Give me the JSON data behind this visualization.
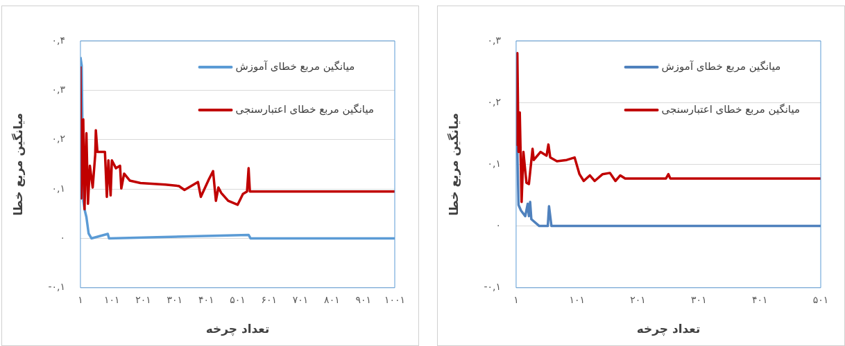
{
  "chart_data": [
    {
      "type": "line",
      "xlabel": "تعداد چرخه",
      "ylabel": "میانگین مربع خطا",
      "xlim": [
        1,
        1001
      ],
      "ylim": [
        -0.1,
        0.4
      ],
      "xticks": [
        {
          "value": 1,
          "label": "۱"
        },
        {
          "value": 101,
          "label": "۱۰۱"
        },
        {
          "value": 201,
          "label": "۲۰۱"
        },
        {
          "value": 301,
          "label": "۳۰۱"
        },
        {
          "value": 401,
          "label": "۴۰۱"
        },
        {
          "value": 501,
          "label": "۵۰۱"
        },
        {
          "value": 601,
          "label": "۶۰۱"
        },
        {
          "value": 701,
          "label": "۷۰۱"
        },
        {
          "value": 801,
          "label": "۸۰۱"
        },
        {
          "value": 901,
          "label": "۹۰۱"
        },
        {
          "value": 1001,
          "label": "۱۰۰۱"
        }
      ],
      "yticks": [
        {
          "value": -0.1,
          "label": "-۰,۱"
        },
        {
          "value": 0,
          "label": "۰"
        },
        {
          "value": 0.1,
          "label": "۰,۱"
        },
        {
          "value": 0.2,
          "label": "۰,۲"
        },
        {
          "value": 0.3,
          "label": "۰,۳"
        },
        {
          "value": 0.4,
          "label": "۰,۴"
        }
      ],
      "grid": "y",
      "legend": "top right",
      "marker": "none",
      "line_style": "solid",
      "series": [
        {
          "name": "میانگین مربع خطای آموزش",
          "color": "#5b9bd5",
          "x": [
            1,
            5,
            10,
            14,
            20,
            27,
            36,
            88,
            92,
            536,
            542,
            1001
          ],
          "values": [
            0.367,
            0.35,
            0.076,
            0.059,
            0.043,
            0.01,
            0,
            0.009,
            0,
            0.007,
            0,
            0
          ]
        },
        {
          "name": "میانگین مربع خطای اعتبارسنجی",
          "color": "#c00000",
          "x": [
            1,
            4,
            10,
            14,
            20,
            25,
            31,
            40,
            48,
            50,
            55,
            62,
            79,
            85,
            90,
            97,
            101,
            114,
            127,
            131,
            140,
            158,
            192,
            271,
            314,
            332,
            375,
            384,
            410,
            423,
            432,
            440,
            449,
            471,
            501,
            518,
            531,
            536,
            540,
            662,
            1001
          ],
          "values": [
            0.348,
            0.081,
            0.241,
            0.059,
            0.213,
            0.07,
            0.147,
            0.103,
            0.169,
            0.219,
            0.175,
            0.175,
            0.175,
            0.084,
            0.158,
            0.087,
            0.158,
            0.142,
            0.147,
            0.101,
            0.131,
            0.117,
            0.112,
            0.109,
            0.106,
            0.098,
            0.114,
            0.084,
            0.12,
            0.136,
            0.076,
            0.103,
            0.092,
            0.076,
            0.068,
            0.09,
            0.095,
            0.142,
            0.095,
            0.095,
            0.095
          ]
        }
      ]
    },
    {
      "type": "line",
      "xlabel": "تعداد چرخه",
      "ylabel": "میانگین مربع خطا",
      "xlim": [
        1,
        501
      ],
      "ylim": [
        -0.1,
        0.3
      ],
      "xticks": [
        {
          "value": 1,
          "label": "۱"
        },
        {
          "value": 101,
          "label": "۱۰۱"
        },
        {
          "value": 201,
          "label": "۲۰۱"
        },
        {
          "value": 301,
          "label": "۳۰۱"
        },
        {
          "value": 401,
          "label": "۴۰۱"
        },
        {
          "value": 501,
          "label": "۵۰۱"
        }
      ],
      "yticks": [
        {
          "value": -0.1,
          "label": "-۰,۱"
        },
        {
          "value": 0,
          "label": "۰"
        },
        {
          "value": 0.1,
          "label": "۰,۱"
        },
        {
          "value": 0.2,
          "label": "۰,۲"
        },
        {
          "value": 0.3,
          "label": "۰,۳"
        }
      ],
      "grid": "y",
      "legend": "top right",
      "marker": "none",
      "line_style": "solid",
      "series": [
        {
          "name": "میانگین مربع خطای آموزش",
          "color": "#4f81bd",
          "x": [
            1,
            2,
            3,
            5,
            9,
            16,
            20,
            22,
            24,
            26,
            39,
            53,
            55,
            59,
            501
          ],
          "values": [
            0.12,
            0.202,
            0.12,
            0.034,
            0.025,
            0.016,
            0.036,
            0.016,
            0.039,
            0.011,
            0,
            0,
            0.032,
            0,
            0
          ]
        },
        {
          "name": "میانگین مربع خطای اعتبارسنجی",
          "color": "#c00000",
          "x": [
            1,
            3,
            5,
            7,
            10,
            13,
            16,
            18,
            22,
            28,
            30,
            41,
            51,
            54,
            57,
            68,
            84,
            97,
            105,
            112,
            122,
            130,
            143,
            155,
            164,
            172,
            180,
            247,
            251,
            254,
            501
          ],
          "values": [
            0.13,
            0.28,
            0.12,
            0.184,
            0.039,
            0.12,
            0.089,
            0.07,
            0.068,
            0.125,
            0.107,
            0.12,
            0.114,
            0.132,
            0.111,
            0.105,
            0.107,
            0.111,
            0.084,
            0.073,
            0.082,
            0.073,
            0.084,
            0.086,
            0.073,
            0.082,
            0.077,
            0.077,
            0.084,
            0.077,
            0.077
          ]
        }
      ]
    }
  ]
}
